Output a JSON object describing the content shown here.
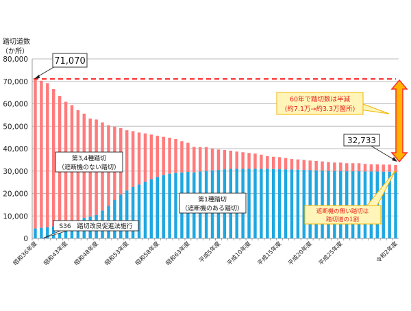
{
  "chart_data": {
    "type": "bar",
    "stacked": true,
    "ylabel": "踏切道数",
    "yunit": "（か所）",
    "ylim": [
      0,
      80000
    ],
    "yticks": [
      "0",
      "10,000",
      "20,000",
      "30,000",
      "40,000",
      "50,000",
      "60,000",
      "70,000",
      "80,000"
    ],
    "grid": true,
    "x_tick_labels": [
      "昭和36年度",
      "昭和43年度",
      "昭和48年度",
      "昭和53年度",
      "昭和58年度",
      "昭和63年度",
      "平成5年度",
      "平成10年度",
      "平成15年度",
      "平成20年度",
      "平成25年度",
      "令和2年度"
    ],
    "totals": [
      71070,
      70300,
      69200,
      66600,
      63500,
      60900,
      59400,
      57200,
      55600,
      53400,
      53000,
      51700,
      50400,
      49800,
      49200,
      48200,
      47800,
      47200,
      46800,
      46300,
      45700,
      45300,
      44900,
      44300,
      43300,
      42600,
      40800,
      40700,
      40700,
      40100,
      39600,
      39400,
      39100,
      38700,
      38400,
      38100,
      37800,
      37300,
      36700,
      36400,
      36200,
      35800,
      35400,
      35200,
      35000,
      34700,
      34500,
      34300,
      34000,
      33800,
      33800,
      33500,
      33500,
      33500,
      33200,
      33000,
      33000,
      32900,
      32900,
      32733
    ],
    "series": [
      {
        "name": "第1種踏切（遮断機のある踏切）",
        "color": "#1ea7e1",
        "values": [
          4400,
          4700,
          4900,
          5300,
          5800,
          6400,
          7100,
          7700,
          9100,
          9700,
          10400,
          12400,
          14500,
          17100,
          19600,
          21300,
          22900,
          24000,
          25200,
          26400,
          27400,
          28200,
          28800,
          29200,
          29400,
          29600,
          29400,
          29800,
          30000,
          30300,
          30500,
          30800,
          31000,
          31000,
          31000,
          31000,
          31000,
          31000,
          31000,
          30900,
          30800,
          30700,
          30700,
          30600,
          30500,
          30400,
          30300,
          30200,
          30100,
          30000,
          30000,
          29900,
          29900,
          29900,
          29800,
          29800,
          29800,
          29700,
          29700,
          29500
        ]
      },
      {
        "name": "第3,4種踏切（遮断機のない踏切）",
        "color": "#ff7b7b"
      }
    ],
    "reference_line": {
      "value": 71070,
      "color": "#ff2a2a",
      "style": "dashed"
    },
    "annotations": {
      "start_value": "71,070",
      "end_value": "32,733",
      "type34_line1": "第3,4種踏切",
      "type34_line2": "（遮断機のない踏切）",
      "type1_line1": "第1種踏切",
      "type1_line2": "（遮断機のある踏切）",
      "law": "S36　踏切改良促進法施行",
      "halved_line1": "60年で踏切数は半減",
      "halved_line2": "(約7.1万→約3.3万箇所)",
      "share_line1": "遮断機の無い踏切は",
      "share_line2": "踏切道の1割"
    }
  }
}
